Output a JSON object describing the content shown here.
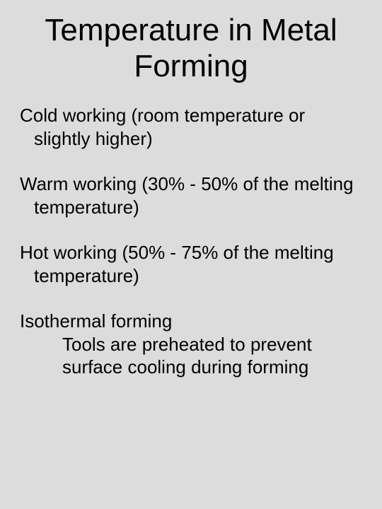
{
  "slide": {
    "background_color": "#dcdcdc",
    "text_color": "#000000",
    "title": "Temperature in Metal Forming",
    "title_fontsize": 44,
    "body_fontsize": 26,
    "items": [
      {
        "text": "Cold working (room temperature or slightly higher)"
      },
      {
        "text": "Warm working (30% - 50% of the melting temperature)"
      },
      {
        "text": "Hot working (50% - 75% of the melting temperature)"
      },
      {
        "text": "Isothermal forming",
        "sub": "Tools are preheated to prevent surface cooling during forming"
      }
    ]
  }
}
